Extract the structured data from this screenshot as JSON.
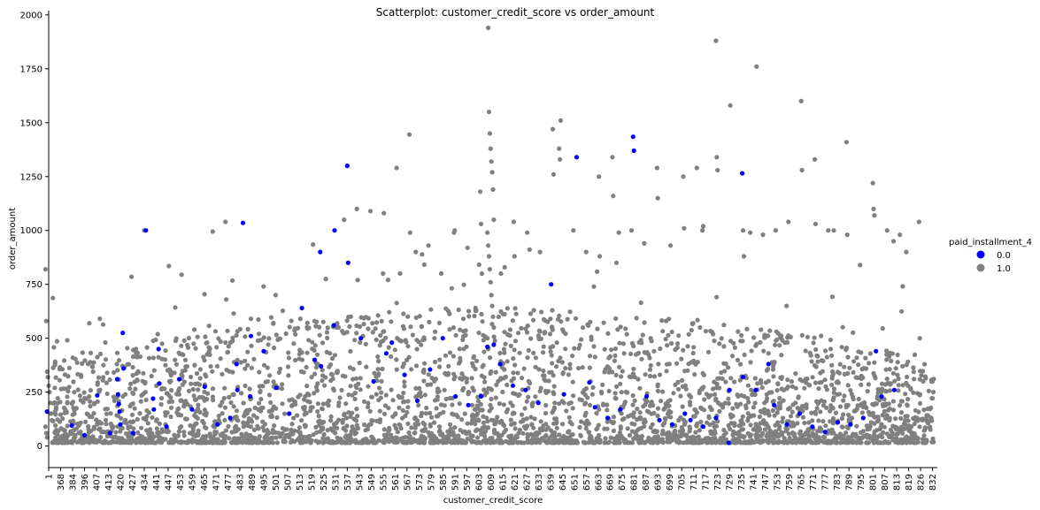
{
  "chart_data": {
    "type": "scatter",
    "title": "Scatterplot: customer_credit_score vs order_amount",
    "xlabel": "customer_credit_score",
    "ylabel": "order_amount",
    "x_axis_kind": "categorical",
    "x_tick_labels": [
      "1",
      "368",
      "384",
      "396",
      "407",
      "413",
      "420",
      "427",
      "434",
      "441",
      "447",
      "453",
      "459",
      "465",
      "471",
      "477",
      "483",
      "489",
      "495",
      "501",
      "507",
      "513",
      "519",
      "525",
      "531",
      "537",
      "543",
      "549",
      "555",
      "561",
      "567",
      "573",
      "579",
      "585",
      "591",
      "597",
      "603",
      "609",
      "615",
      "621",
      "627",
      "633",
      "639",
      "645",
      "651",
      "657",
      "663",
      "669",
      "675",
      "681",
      "687",
      "693",
      "699",
      "705",
      "711",
      "717",
      "723",
      "729",
      "735",
      "741",
      "747",
      "753",
      "759",
      "765",
      "771",
      "777",
      "783",
      "789",
      "795",
      "801",
      "807",
      "813",
      "819",
      "826",
      "832"
    ],
    "y_ticks": [
      0,
      250,
      500,
      750,
      1000,
      1250,
      1500,
      1750,
      2000
    ],
    "ylim": [
      -100,
      2020
    ],
    "grid": false,
    "legend": {
      "title": "paid_installment_4",
      "placement": "right",
      "entries": [
        {
          "label": "0.0",
          "color": "#0000ff"
        },
        {
          "label": "1.0",
          "color": "#808080"
        }
      ]
    },
    "series": [
      {
        "name": "1.0",
        "color": "#808080",
        "points": [
          [
            "1",
            820
          ],
          [
            "1",
            580
          ],
          [
            "1",
            345
          ],
          [
            "1",
            320
          ],
          [
            "1",
            280
          ],
          [
            "1",
            250
          ],
          [
            "1",
            200
          ],
          [
            "1",
            150
          ],
          [
            "1",
            120
          ],
          [
            "1",
            90
          ],
          [
            "1",
            60
          ],
          [
            "1",
            40
          ],
          [
            "427",
            785
          ],
          [
            "434",
            1000
          ],
          [
            "447",
            835
          ],
          [
            "453",
            795
          ],
          [
            "459",
            540
          ],
          [
            "465",
            480
          ],
          [
            "471",
            995
          ],
          [
            "477",
            1040
          ],
          [
            "477",
            680
          ],
          [
            "489",
            590
          ],
          [
            "501",
            700
          ],
          [
            "513",
            590
          ],
          [
            "519",
            935
          ],
          [
            "525",
            775
          ],
          [
            "531",
            550
          ],
          [
            "537",
            1050
          ],
          [
            "543",
            1100
          ],
          [
            "543",
            770
          ],
          [
            "549",
            1090
          ],
          [
            "555",
            800
          ],
          [
            "555",
            1080
          ],
          [
            "561",
            1290
          ],
          [
            "567",
            1445
          ],
          [
            "567",
            990
          ],
          [
            "573",
            900
          ],
          [
            "579",
            930
          ],
          [
            "585",
            800
          ],
          [
            "591",
            990
          ],
          [
            "591",
            1000
          ],
          [
            "597",
            920
          ],
          [
            "603",
            1180
          ],
          [
            "603",
            1030
          ],
          [
            "603",
            800
          ],
          [
            "603",
            640
          ],
          [
            "609",
            1940
          ],
          [
            "609",
            1550
          ],
          [
            "609",
            1450
          ],
          [
            "609",
            1380
          ],
          [
            "609",
            1320
          ],
          [
            "609",
            1270
          ],
          [
            "609",
            1190
          ],
          [
            "609",
            1050
          ],
          [
            "609",
            990
          ],
          [
            "609",
            930
          ],
          [
            "609",
            880
          ],
          [
            "609",
            820
          ],
          [
            "609",
            760
          ],
          [
            "609",
            700
          ],
          [
            "609",
            650
          ],
          [
            "609",
            600
          ],
          [
            "609",
            550
          ],
          [
            "609",
            500
          ],
          [
            "609",
            450
          ],
          [
            "615",
            800
          ],
          [
            "621",
            1040
          ],
          [
            "621",
            880
          ],
          [
            "627",
            990
          ],
          [
            "633",
            900
          ],
          [
            "639",
            1470
          ],
          [
            "639",
            1260
          ],
          [
            "645",
            1380
          ],
          [
            "645",
            1330
          ],
          [
            "645",
            1510
          ],
          [
            "651",
            1000
          ],
          [
            "657",
            900
          ],
          [
            "663",
            1250
          ],
          [
            "663",
            880
          ],
          [
            "669",
            1340
          ],
          [
            "669",
            1160
          ],
          [
            "675",
            990
          ],
          [
            "681",
            1000
          ],
          [
            "687",
            940
          ],
          [
            "693",
            1290
          ],
          [
            "693",
            1150
          ],
          [
            "699",
            930
          ],
          [
            "705",
            1250
          ],
          [
            "705",
            1010
          ],
          [
            "711",
            1290
          ],
          [
            "717",
            1000
          ],
          [
            "717",
            1020
          ],
          [
            "723",
            1880
          ],
          [
            "723",
            1340
          ],
          [
            "723",
            1280
          ],
          [
            "729",
            1580
          ],
          [
            "735",
            1000
          ],
          [
            "735",
            880
          ],
          [
            "741",
            1760
          ],
          [
            "741",
            990
          ],
          [
            "747",
            980
          ],
          [
            "753",
            1000
          ],
          [
            "759",
            1040
          ],
          [
            "765",
            1600
          ],
          [
            "765",
            1280
          ],
          [
            "771",
            1330
          ],
          [
            "771",
            1030
          ],
          [
            "777",
            1000
          ],
          [
            "783",
            1000
          ],
          [
            "789",
            1410
          ],
          [
            "789",
            980
          ],
          [
            "795",
            840
          ],
          [
            "801",
            1220
          ],
          [
            "801",
            1100
          ],
          [
            "801",
            1070
          ],
          [
            "807",
            1000
          ],
          [
            "813",
            980
          ],
          [
            "813",
            950
          ],
          [
            "819",
            900
          ],
          [
            "826",
            1040
          ],
          [
            "826",
            500
          ],
          [
            "832",
            300
          ],
          [
            "832",
            250
          ]
        ]
      },
      {
        "name": "0.0",
        "color": "#0000ff",
        "points": [
          [
            "1",
            160
          ],
          [
            "384",
            95
          ],
          [
            "396",
            50
          ],
          [
            "407",
            235
          ],
          [
            "413",
            60
          ],
          [
            "420",
            525
          ],
          [
            "420",
            360
          ],
          [
            "420",
            310
          ],
          [
            "420",
            240
          ],
          [
            "420",
            195
          ],
          [
            "420",
            160
          ],
          [
            "420",
            100
          ],
          [
            "427",
            60
          ],
          [
            "434",
            1000
          ],
          [
            "441",
            450
          ],
          [
            "441",
            290
          ],
          [
            "441",
            220
          ],
          [
            "441",
            170
          ],
          [
            "447",
            90
          ],
          [
            "453",
            310
          ],
          [
            "459",
            170
          ],
          [
            "465",
            275
          ],
          [
            "471",
            100
          ],
          [
            "477",
            130
          ],
          [
            "483",
            1035
          ],
          [
            "483",
            380
          ],
          [
            "483",
            260
          ],
          [
            "489",
            230
          ],
          [
            "489",
            510
          ],
          [
            "495",
            440
          ],
          [
            "501",
            270
          ],
          [
            "507",
            150
          ],
          [
            "513",
            640
          ],
          [
            "519",
            400
          ],
          [
            "525",
            900
          ],
          [
            "525",
            370
          ],
          [
            "531",
            560
          ],
          [
            "531",
            1000
          ],
          [
            "537",
            1300
          ],
          [
            "537",
            850
          ],
          [
            "543",
            500
          ],
          [
            "549",
            300
          ],
          [
            "555",
            430
          ],
          [
            "561",
            480
          ],
          [
            "567",
            330
          ],
          [
            "573",
            210
          ],
          [
            "579",
            355
          ],
          [
            "585",
            500
          ],
          [
            "591",
            230
          ],
          [
            "597",
            190
          ],
          [
            "603",
            230
          ],
          [
            "609",
            470
          ],
          [
            "609",
            460
          ],
          [
            "615",
            380
          ],
          [
            "621",
            280
          ],
          [
            "627",
            260
          ],
          [
            "633",
            200
          ],
          [
            "639",
            750
          ],
          [
            "645",
            240
          ],
          [
            "651",
            1340
          ],
          [
            "657",
            295
          ],
          [
            "663",
            180
          ],
          [
            "669",
            130
          ],
          [
            "675",
            170
          ],
          [
            "681",
            1435
          ],
          [
            "681",
            1370
          ],
          [
            "687",
            230
          ],
          [
            "693",
            120
          ],
          [
            "699",
            100
          ],
          [
            "705",
            150
          ],
          [
            "711",
            120
          ],
          [
            "717",
            90
          ],
          [
            "723",
            130
          ],
          [
            "729",
            15
          ],
          [
            "729",
            260
          ],
          [
            "735",
            1265
          ],
          [
            "735",
            320
          ],
          [
            "741",
            260
          ],
          [
            "747",
            380
          ],
          [
            "753",
            190
          ],
          [
            "759",
            100
          ],
          [
            "765",
            150
          ],
          [
            "771",
            90
          ],
          [
            "777",
            65
          ],
          [
            "783",
            110
          ],
          [
            "789",
            100
          ],
          [
            "795",
            130
          ],
          [
            "801",
            440
          ],
          [
            "807",
            230
          ],
          [
            "813",
            260
          ]
        ]
      }
    ]
  }
}
